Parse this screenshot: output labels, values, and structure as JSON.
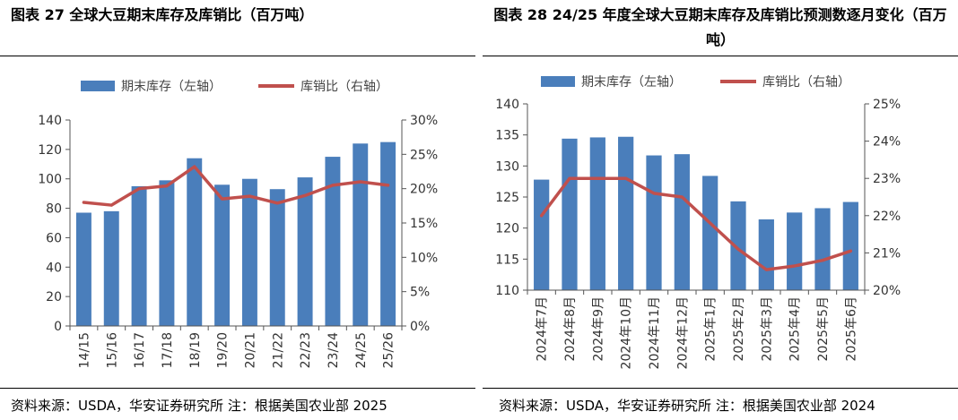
{
  "colors": {
    "bar": "#4a7ebb",
    "line": "#c0504d",
    "axis": "#555555",
    "rule": "#000000"
  },
  "left": {
    "title": "图表 27  全球大豆期末库存及库销比（百万吨）",
    "source": "资料来源：USDA，华安证券研究所   注：根据美国农业部 2025",
    "legend": {
      "bar": "期末库存（左轴）",
      "line": "库销比（右轴）"
    }
  },
  "right": {
    "title": "图表 28 24/25 年度全球大豆期末库存及库销比预测数逐月变化（百万吨）",
    "source": "资料来源：USDA，华安证券研究所   注：根据美国农业部 2024",
    "legend": {
      "bar": "期末库存（左轴）",
      "line": "库销比（右轴）"
    }
  },
  "chart_data": [
    {
      "type": "bar",
      "title": "图表 27  全球大豆期末库存及库销比（百万吨）",
      "categories": [
        "14/15",
        "15/16",
        "16/17",
        "17/18",
        "18/19",
        "19/20",
        "20/21",
        "21/22",
        "22/23",
        "23/24",
        "24/25",
        "25/26"
      ],
      "series": [
        {
          "name": "期末库存（左轴）",
          "type": "bar",
          "axis": "left",
          "values": [
            77,
            78,
            95,
            99,
            114,
            96,
            100,
            93,
            101,
            115,
            124,
            125
          ]
        },
        {
          "name": "库销比（右轴）",
          "type": "line",
          "axis": "right",
          "values": [
            18.0,
            17.6,
            20.0,
            20.4,
            23.2,
            18.5,
            18.9,
            17.9,
            19.0,
            20.5,
            21.0,
            20.5
          ]
        }
      ],
      "ylim": [
        0,
        140
      ],
      "yticks": [
        0,
        20,
        40,
        60,
        80,
        100,
        120,
        140
      ],
      "y2lim": [
        0,
        30
      ],
      "y2ticks": [
        0,
        5,
        10,
        15,
        20,
        25,
        30
      ],
      "y2_tick_labels": [
        "0%",
        "5%",
        "10%",
        "15%",
        "20%",
        "25%",
        "30%"
      ],
      "legend_position": "top",
      "grid": false
    },
    {
      "type": "bar",
      "title": "图表 28 24/25 年度全球大豆期末库存及库销比预测数逐月变化（百万吨）",
      "categories": [
        "2024年7月",
        "2024年8月",
        "2024年9月",
        "2024年10月",
        "2024年11月",
        "2024年12月",
        "2025年1月",
        "2025年2月",
        "2025年3月",
        "2025年4月",
        "2025年5月",
        "2025年6月"
      ],
      "series": [
        {
          "name": "期末库存（左轴）",
          "type": "bar",
          "axis": "left",
          "values": [
            127.8,
            134.4,
            134.6,
            134.7,
            131.7,
            131.9,
            128.4,
            124.3,
            121.4,
            122.5,
            123.2,
            124.2
          ]
        },
        {
          "name": "库销比（右轴）",
          "type": "line",
          "axis": "right",
          "values": [
            22.0,
            23.0,
            23.0,
            23.0,
            22.6,
            22.5,
            21.8,
            21.1,
            20.55,
            20.65,
            20.8,
            21.05
          ]
        }
      ],
      "ylim": [
        110,
        140
      ],
      "yticks": [
        110,
        115,
        120,
        125,
        130,
        135,
        140
      ],
      "y2lim": [
        20,
        25
      ],
      "y2ticks": [
        20,
        21,
        22,
        23,
        24,
        25
      ],
      "y2_tick_labels": [
        "20%",
        "21%",
        "22%",
        "23%",
        "24%",
        "25%"
      ],
      "legend_position": "top",
      "grid": false
    }
  ]
}
